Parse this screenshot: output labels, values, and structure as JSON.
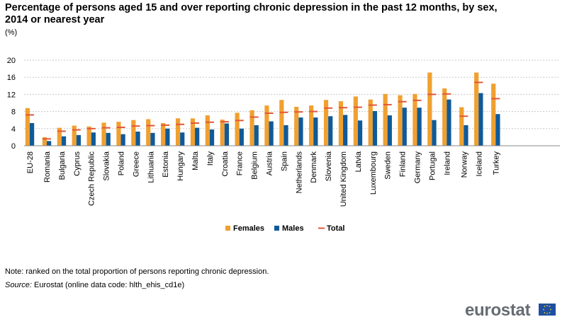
{
  "title": "Percentage of persons aged 15 and over reporting chronic depression in the past 12 months, by sex, 2014 or nearest year",
  "unit": "(%)",
  "note": "Note: ranked on the total proportion of persons reporting chronic depression.",
  "source_label": "Source:",
  "source_text": " Eurostat (online data code: hlth_ehis_cd1e)",
  "logo_text": "eurostat",
  "colors": {
    "females": "#f0a030",
    "males": "#0f5a99",
    "total": "#e3573a",
    "grid": "#c8c8c8",
    "axis": "#888888"
  },
  "chart_data": {
    "type": "bar",
    "title": "Percentage of persons aged 15 and over reporting chronic depression in the past 12 months, by sex, 2014 or nearest year",
    "ylabel": "(%)",
    "xlabel": "",
    "ylim": [
      0,
      20
    ],
    "yticks": [
      0,
      4,
      8,
      12,
      16,
      20
    ],
    "grid": true,
    "legend": "bottom-center",
    "categories": [
      "EU-28",
      "Romania",
      "Bulgaria",
      "Cyprus",
      "Czech Republic",
      "Slovakia",
      "Poland",
      "Greece",
      "Lithuania",
      "Estonia",
      "Hungary",
      "Malta",
      "Italy",
      "Croatia",
      "France",
      "Belgium",
      "Austria",
      "Spain",
      "Netherlands",
      "Denmark",
      "Slovenia",
      "United Kingdom",
      "Latvia",
      "Luxembourg",
      "Sweden",
      "Finland",
      "Germany",
      "Portugal",
      "Ireland",
      "Norway",
      "Iceland",
      "Turkey"
    ],
    "groups": [
      [
        0
      ],
      [
        1,
        28
      ],
      [
        29,
        30
      ],
      [
        31
      ]
    ],
    "series": [
      {
        "name": "Females",
        "kind": "bar",
        "values": [
          8.8,
          2.0,
          4.2,
          4.7,
          4.5,
          5.4,
          5.6,
          6.0,
          6.2,
          5.3,
          6.4,
          6.4,
          7.1,
          6.1,
          7.7,
          8.3,
          9.4,
          10.7,
          9.1,
          9.4,
          10.7,
          10.4,
          11.5,
          10.8,
          12.1,
          11.8,
          12.1,
          17.1,
          13.4,
          9.0,
          17.1,
          14.5
        ]
      },
      {
        "name": "Males",
        "kind": "bar",
        "values": [
          5.3,
          1.1,
          2.2,
          2.5,
          3.1,
          3.0,
          2.7,
          3.3,
          3.0,
          4.0,
          3.1,
          4.2,
          3.8,
          5.2,
          4.0,
          4.8,
          5.7,
          4.8,
          6.6,
          6.6,
          6.9,
          7.2,
          5.9,
          8.1,
          7.1,
          8.9,
          8.9,
          6.0,
          10.8,
          4.8,
          12.3,
          7.4
        ]
      },
      {
        "name": "Total",
        "kind": "marker",
        "values": [
          7.2,
          1.6,
          3.4,
          3.7,
          4.0,
          4.2,
          4.3,
          4.6,
          4.7,
          4.8,
          5.0,
          5.3,
          5.5,
          5.6,
          5.9,
          6.7,
          7.6,
          7.8,
          7.9,
          8.0,
          8.8,
          8.9,
          9.0,
          9.5,
          9.6,
          10.3,
          10.6,
          12.0,
          12.1,
          6.9,
          14.8,
          11.0
        ]
      }
    ]
  }
}
